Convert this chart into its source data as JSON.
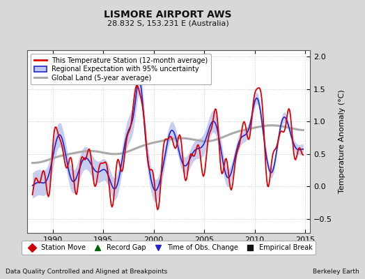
{
  "title": "LISMORE AIRPORT AWS",
  "subtitle": "28.832 S, 153.231 E (Australia)",
  "ylabel": "Temperature Anomaly (°C)",
  "xlabel_left": "Data Quality Controlled and Aligned at Breakpoints",
  "xlabel_right": "Berkeley Earth",
  "ylim": [
    -0.72,
    2.1
  ],
  "xlim": [
    1987.5,
    2015.5
  ],
  "xticks": [
    1990,
    1995,
    2000,
    2005,
    2010,
    2015
  ],
  "yticks": [
    -0.5,
    0,
    0.5,
    1.0,
    1.5,
    2.0
  ],
  "bg_color": "#d8d8d8",
  "plot_bg_color": "#ffffff",
  "grid_color": "#cccccc",
  "station_color": "#dd0000",
  "regional_color": "#2222cc",
  "regional_fill_color": "#c0c8ee",
  "global_color": "#aaaaaa",
  "legend_items": [
    "This Temperature Station (12-month average)",
    "Regional Expectation with 95% uncertainty",
    "Global Land (5-year average)"
  ],
  "bottom_legend_items": [
    {
      "label": "Station Move",
      "color": "#cc0000",
      "marker": "D"
    },
    {
      "label": "Record Gap",
      "color": "#006600",
      "marker": "^"
    },
    {
      "label": "Time of Obs. Change",
      "color": "#2222cc",
      "marker": "v"
    },
    {
      "label": "Empirical Break",
      "color": "#111111",
      "marker": "s"
    }
  ]
}
